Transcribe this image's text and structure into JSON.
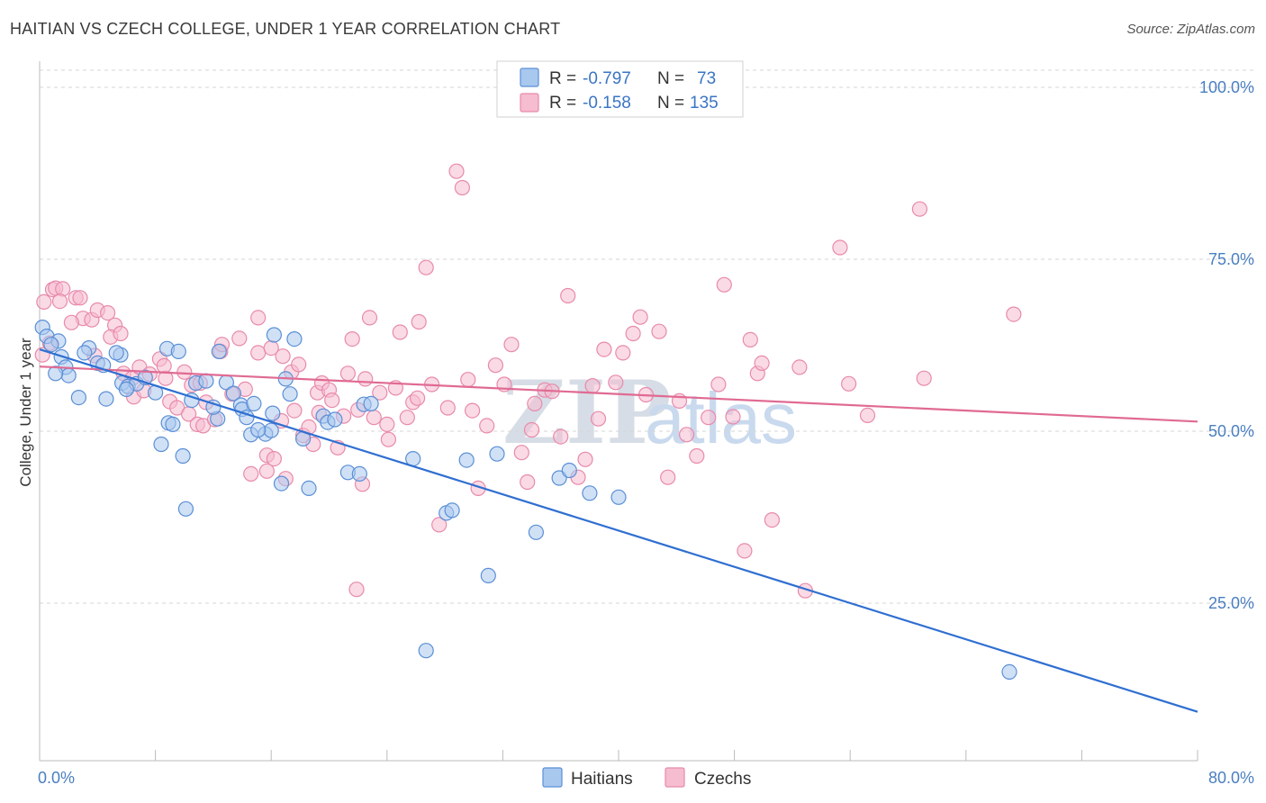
{
  "title": "HAITIAN VS CZECH COLLEGE, UNDER 1 YEAR CORRELATION CHART",
  "source": "Source: ZipAtlas.com",
  "watermark": {
    "zip": "ZIP",
    "atlas": "atlas"
  },
  "legend": {
    "rows": [
      {
        "r_label": "R =",
        "r_value": "-0.797",
        "n_label": "N =",
        "n_value": "73"
      },
      {
        "r_label": "R =",
        "r_value": "-0.158",
        "n_label": "N =",
        "n_value": "135"
      }
    ]
  },
  "colors": {
    "haitians_fill": "#a9c8ee",
    "haitians_stroke": "#5b8fd6",
    "haitians_line": "#2f6fd1",
    "czechs_fill": "#f6bcd0",
    "czechs_stroke": "#e88aab",
    "czechs_line": "#e06a93",
    "grid": "#d6d6d6",
    "axis_text": "#4a7fc1"
  },
  "chart_data": {
    "type": "scatter",
    "title": "HAITIAN VS CZECH COLLEGE, UNDER 1 YEAR CORRELATION CHART",
    "xlabel": "",
    "ylabel": "College, Under 1 year",
    "xlim": [
      0,
      80
    ],
    "ylim": [
      0,
      105
    ],
    "x_tick_labels": [
      "0.0%",
      "80.0%"
    ],
    "y_ticks": [
      25,
      50,
      75,
      100
    ],
    "y_tick_labels": [
      "25.0%",
      "50.0%",
      "75.0%",
      "100.0%"
    ],
    "grid": true,
    "legend_position": "top-center",
    "series": [
      {
        "name": "Haitians",
        "r": -0.797,
        "n": 73,
        "trend": {
          "x": [
            0,
            80
          ],
          "y": [
            61.9,
            9.2
          ]
        },
        "points": [
          [
            0.2,
            65.1
          ],
          [
            0.5,
            63.8
          ],
          [
            1.3,
            63.1
          ],
          [
            0.8,
            62.6
          ],
          [
            1.5,
            60.8
          ],
          [
            3.4,
            62.1
          ],
          [
            1.8,
            59.3
          ],
          [
            2.0,
            58.1
          ],
          [
            2.7,
            54.9
          ],
          [
            3.1,
            61.4
          ],
          [
            4.0,
            59.9
          ],
          [
            4.4,
            59.6
          ],
          [
            5.6,
            61.1
          ],
          [
            4.6,
            54.7
          ],
          [
            5.3,
            61.4
          ],
          [
            5.7,
            57.0
          ],
          [
            6.1,
            56.5
          ],
          [
            6.7,
            56.9
          ],
          [
            7.3,
            57.8
          ],
          [
            8.0,
            55.6
          ],
          [
            8.8,
            62.0
          ],
          [
            8.4,
            48.1
          ],
          [
            8.9,
            51.2
          ],
          [
            9.6,
            61.6
          ],
          [
            9.9,
            46.4
          ],
          [
            10.1,
            38.7
          ],
          [
            10.5,
            54.5
          ],
          [
            10.8,
            57.0
          ],
          [
            11.5,
            57.3
          ],
          [
            12.3,
            51.8
          ],
          [
            12.0,
            53.5
          ],
          [
            12.4,
            61.6
          ],
          [
            12.9,
            57.1
          ],
          [
            13.4,
            55.5
          ],
          [
            13.9,
            53.8
          ],
          [
            14.0,
            53.2
          ],
          [
            14.3,
            52.0
          ],
          [
            14.6,
            49.5
          ],
          [
            14.8,
            54.0
          ],
          [
            15.6,
            49.6
          ],
          [
            16.0,
            50.1
          ],
          [
            16.1,
            52.6
          ],
          [
            16.2,
            64.0
          ],
          [
            16.7,
            42.4
          ],
          [
            17.0,
            57.6
          ],
          [
            17.3,
            55.4
          ],
          [
            17.6,
            63.4
          ],
          [
            18.2,
            48.9
          ],
          [
            18.6,
            41.7
          ],
          [
            19.6,
            52.2
          ],
          [
            19.9,
            51.3
          ],
          [
            20.4,
            51.7
          ],
          [
            21.3,
            44.0
          ],
          [
            22.1,
            43.8
          ],
          [
            22.4,
            53.9
          ],
          [
            22.9,
            54.0
          ],
          [
            25.8,
            46.0
          ],
          [
            26.7,
            18.1
          ],
          [
            28.1,
            38.1
          ],
          [
            28.5,
            38.5
          ],
          [
            29.5,
            45.8
          ],
          [
            31.0,
            29.0
          ],
          [
            31.6,
            46.7
          ],
          [
            34.3,
            35.3
          ],
          [
            35.9,
            43.2
          ],
          [
            36.6,
            44.3
          ],
          [
            38.0,
            41.0
          ],
          [
            40.0,
            40.4
          ],
          [
            67.0,
            15.0
          ],
          [
            1.1,
            58.4
          ],
          [
            6.0,
            56.1
          ],
          [
            9.2,
            51.0
          ],
          [
            15.1,
            50.2
          ]
        ]
      },
      {
        "name": "Czechs",
        "r": -0.158,
        "n": 135,
        "trend": {
          "x": [
            0,
            80
          ],
          "y": [
            59.4,
            51.4
          ]
        },
        "points": [
          [
            0.3,
            68.8
          ],
          [
            0.9,
            70.6
          ],
          [
            1.1,
            70.8
          ],
          [
            1.6,
            70.7
          ],
          [
            1.4,
            68.9
          ],
          [
            2.5,
            69.4
          ],
          [
            2.8,
            69.4
          ],
          [
            3.0,
            66.4
          ],
          [
            3.6,
            66.2
          ],
          [
            4.0,
            67.6
          ],
          [
            4.7,
            67.2
          ],
          [
            5.2,
            65.4
          ],
          [
            4.9,
            63.7
          ],
          [
            5.6,
            64.2
          ],
          [
            0.2,
            61.1
          ],
          [
            0.7,
            62.8
          ],
          [
            2.2,
            65.8
          ],
          [
            3.8,
            61.0
          ],
          [
            5.8,
            58.4
          ],
          [
            6.4,
            57.7
          ],
          [
            6.5,
            55.0
          ],
          [
            6.9,
            59.3
          ],
          [
            7.2,
            55.9
          ],
          [
            7.6,
            58.3
          ],
          [
            8.3,
            60.5
          ],
          [
            8.7,
            57.7
          ],
          [
            9.0,
            54.3
          ],
          [
            9.5,
            53.4
          ],
          [
            10.0,
            58.6
          ],
          [
            10.3,
            52.5
          ],
          [
            10.5,
            56.7
          ],
          [
            10.9,
            51.0
          ],
          [
            11.3,
            50.8
          ],
          [
            11.5,
            54.2
          ],
          [
            12.1,
            51.7
          ],
          [
            12.5,
            61.6
          ],
          [
            12.6,
            62.6
          ],
          [
            13.3,
            55.4
          ],
          [
            13.8,
            63.5
          ],
          [
            14.2,
            56.1
          ],
          [
            14.6,
            43.8
          ],
          [
            15.1,
            66.5
          ],
          [
            15.1,
            61.4
          ],
          [
            15.7,
            44.2
          ],
          [
            15.7,
            46.5
          ],
          [
            16.0,
            62.1
          ],
          [
            16.2,
            46.0
          ],
          [
            16.7,
            51.5
          ],
          [
            17.0,
            43.1
          ],
          [
            17.4,
            58.6
          ],
          [
            17.6,
            53.0
          ],
          [
            17.9,
            59.7
          ],
          [
            18.2,
            49.4
          ],
          [
            18.6,
            50.6
          ],
          [
            18.9,
            48.1
          ],
          [
            19.2,
            55.6
          ],
          [
            19.5,
            57.0
          ],
          [
            20.0,
            56.0
          ],
          [
            20.2,
            54.5
          ],
          [
            20.6,
            47.6
          ],
          [
            21.0,
            52.2
          ],
          [
            21.3,
            58.4
          ],
          [
            21.6,
            63.4
          ],
          [
            22.0,
            53.1
          ],
          [
            22.3,
            42.3
          ],
          [
            22.5,
            57.6
          ],
          [
            22.8,
            66.5
          ],
          [
            23.1,
            52.0
          ],
          [
            23.5,
            55.6
          ],
          [
            24.1,
            48.8
          ],
          [
            24.6,
            56.3
          ],
          [
            24.9,
            64.4
          ],
          [
            25.4,
            52.0
          ],
          [
            25.8,
            54.2
          ],
          [
            26.2,
            65.9
          ],
          [
            26.7,
            73.8
          ],
          [
            27.1,
            56.8
          ],
          [
            27.6,
            36.4
          ],
          [
            28.2,
            53.4
          ],
          [
            28.8,
            87.8
          ],
          [
            29.2,
            85.4
          ],
          [
            29.6,
            57.5
          ],
          [
            29.9,
            53.0
          ],
          [
            30.3,
            41.7
          ],
          [
            30.9,
            50.8
          ],
          [
            31.5,
            59.6
          ],
          [
            32.1,
            56.8
          ],
          [
            32.6,
            62.6
          ],
          [
            33.3,
            46.9
          ],
          [
            33.7,
            42.6
          ],
          [
            34.2,
            54.0
          ],
          [
            34.9,
            56.0
          ],
          [
            35.4,
            55.8
          ],
          [
            36.0,
            49.2
          ],
          [
            36.5,
            69.7
          ],
          [
            37.2,
            43.3
          ],
          [
            37.7,
            45.9
          ],
          [
            38.2,
            56.6
          ],
          [
            38.6,
            51.8
          ],
          [
            39.0,
            61.9
          ],
          [
            39.8,
            57.1
          ],
          [
            40.3,
            61.4
          ],
          [
            41.0,
            64.2
          ],
          [
            41.5,
            66.6
          ],
          [
            41.9,
            55.3
          ],
          [
            42.8,
            64.5
          ],
          [
            43.4,
            43.3
          ],
          [
            44.2,
            54.4
          ],
          [
            44.7,
            49.5
          ],
          [
            45.4,
            46.4
          ],
          [
            46.2,
            52.0
          ],
          [
            46.9,
            56.8
          ],
          [
            47.3,
            71.3
          ],
          [
            47.9,
            52.1
          ],
          [
            48.7,
            32.6
          ],
          [
            49.1,
            63.3
          ],
          [
            49.6,
            58.4
          ],
          [
            49.9,
            59.9
          ],
          [
            50.6,
            37.1
          ],
          [
            52.5,
            59.3
          ],
          [
            52.9,
            26.8
          ],
          [
            55.3,
            76.7
          ],
          [
            55.9,
            56.9
          ],
          [
            57.2,
            52.3
          ],
          [
            60.8,
            82.3
          ],
          [
            61.1,
            57.7
          ],
          [
            67.3,
            67.0
          ],
          [
            8.6,
            59.5
          ],
          [
            11.1,
            57.0
          ],
          [
            16.8,
            60.9
          ],
          [
            19.3,
            52.7
          ],
          [
            24.0,
            51.0
          ],
          [
            26.1,
            54.8
          ],
          [
            34.0,
            50.2
          ],
          [
            21.9,
            27.0
          ]
        ]
      }
    ]
  },
  "bottom_legend": [
    {
      "label": "Haitians"
    },
    {
      "label": "Czechs"
    }
  ]
}
